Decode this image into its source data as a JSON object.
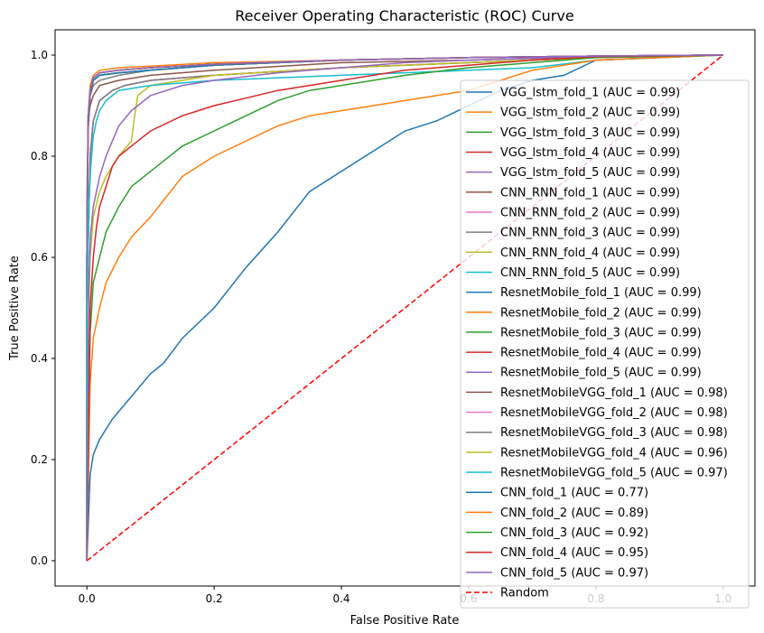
{
  "chart_data": {
    "type": "line",
    "title": "Receiver Operating Characteristic (ROC) Curve",
    "xlabel": "False Positive Rate",
    "ylabel": "True Positive Rate",
    "xlim": [
      -0.05,
      1.05
    ],
    "ylim": [
      -0.05,
      1.05
    ],
    "xticks": [
      "0.0",
      "0.2",
      "0.4",
      "0.6",
      "0.8",
      "1.0"
    ],
    "yticks": [
      "0.0",
      "0.2",
      "0.4",
      "0.6",
      "0.8",
      "1.0"
    ],
    "grid": false,
    "legend_position": "right",
    "series": [
      {
        "name": "VGG_lstm_fold_1 (AUC = 0.99)",
        "color": "#1f77b4",
        "x": [
          0,
          0,
          0.002,
          0.005,
          0.01,
          0.02,
          0.05,
          0.1,
          0.2,
          0.4,
          0.6,
          0.8,
          1
        ],
        "y": [
          0,
          0.6,
          0.85,
          0.92,
          0.95,
          0.96,
          0.965,
          0.97,
          0.98,
          0.99,
          0.995,
          0.998,
          1
        ]
      },
      {
        "name": "VGG_lstm_fold_2 (AUC = 0.99)",
        "color": "#ff7f0e",
        "x": [
          0,
          0,
          0.002,
          0.005,
          0.01,
          0.02,
          0.05,
          0.1,
          0.2,
          0.4,
          0.6,
          0.8,
          1
        ],
        "y": [
          0,
          0.65,
          0.88,
          0.94,
          0.96,
          0.97,
          0.975,
          0.978,
          0.985,
          0.99,
          0.995,
          0.998,
          1
        ]
      },
      {
        "name": "VGG_lstm_fold_3 (AUC = 0.99)",
        "color": "#2ca02c",
        "x": [
          0,
          0,
          0.002,
          0.005,
          0.01,
          0.02,
          0.05,
          0.1,
          0.2,
          0.4,
          0.6,
          0.8,
          1
        ],
        "y": [
          0,
          0.6,
          0.86,
          0.92,
          0.95,
          0.96,
          0.965,
          0.97,
          0.98,
          0.99,
          0.995,
          0.998,
          1
        ]
      },
      {
        "name": "VGG_lstm_fold_4 (AUC = 0.99)",
        "color": "#d62728",
        "x": [
          0,
          0,
          0.002,
          0.005,
          0.01,
          0.02,
          0.05,
          0.1,
          0.2,
          0.4,
          0.6,
          0.8,
          1
        ],
        "y": [
          0,
          0.6,
          0.86,
          0.92,
          0.95,
          0.96,
          0.965,
          0.97,
          0.98,
          0.99,
          0.995,
          0.998,
          1
        ]
      },
      {
        "name": "VGG_lstm_fold_5 (AUC = 0.99)",
        "color": "#9467bd",
        "x": [
          0,
          0,
          0.002,
          0.005,
          0.01,
          0.02,
          0.05,
          0.1,
          0.2,
          0.4,
          0.6,
          0.8,
          1
        ],
        "y": [
          0,
          0.6,
          0.87,
          0.93,
          0.955,
          0.965,
          0.97,
          0.975,
          0.982,
          0.99,
          0.995,
          0.998,
          1
        ]
      },
      {
        "name": "CNN_RNN_fold_1 (AUC = 0.99)",
        "color": "#8c564b",
        "x": [
          0,
          0,
          0.002,
          0.005,
          0.01,
          0.02,
          0.05,
          0.1,
          0.2,
          0.4,
          0.6,
          0.8,
          1
        ],
        "y": [
          0,
          0.7,
          0.87,
          0.9,
          0.92,
          0.94,
          0.95,
          0.96,
          0.97,
          0.985,
          0.99,
          0.997,
          1
        ]
      },
      {
        "name": "CNN_RNN_fold_2 (AUC = 0.99)",
        "color": "#e377c2",
        "x": [
          0,
          0,
          0.002,
          0.005,
          0.01,
          0.02,
          0.05,
          0.1,
          0.2,
          0.4,
          0.6,
          0.8,
          1
        ],
        "y": [
          0,
          0.6,
          0.88,
          0.93,
          0.95,
          0.96,
          0.965,
          0.97,
          0.98,
          0.99,
          0.995,
          0.998,
          1
        ]
      },
      {
        "name": "CNN_RNN_fold_3 (AUC = 0.99)",
        "color": "#7f7f7f",
        "x": [
          0,
          0,
          0.002,
          0.005,
          0.01,
          0.02,
          0.05,
          0.1,
          0.2,
          0.4,
          0.6,
          0.8,
          1
        ],
        "y": [
          0,
          0.6,
          0.88,
          0.92,
          0.94,
          0.95,
          0.96,
          0.97,
          0.98,
          0.99,
          0.995,
          0.998,
          1
        ]
      },
      {
        "name": "CNN_RNN_fold_4 (AUC = 0.99)",
        "color": "#bcbd22",
        "x": [
          0,
          0,
          0.002,
          0.005,
          0.01,
          0.02,
          0.05,
          0.1,
          0.2,
          0.4,
          0.6,
          0.8,
          1
        ],
        "y": [
          0,
          0.6,
          0.88,
          0.93,
          0.95,
          0.96,
          0.965,
          0.97,
          0.98,
          0.99,
          0.995,
          0.998,
          1
        ]
      },
      {
        "name": "CNN_RNN_fold_5 (AUC = 0.99)",
        "color": "#17becf",
        "x": [
          0,
          0,
          0.002,
          0.005,
          0.01,
          0.02,
          0.05,
          0.1,
          0.2,
          0.4,
          0.6,
          0.8,
          1
        ],
        "y": [
          0,
          0.6,
          0.88,
          0.93,
          0.95,
          0.96,
          0.965,
          0.97,
          0.98,
          0.99,
          0.995,
          0.998,
          1
        ]
      },
      {
        "name": "ResnetMobile_fold_1 (AUC = 0.99)",
        "color": "#1f77b4",
        "x": [
          0,
          0,
          0.002,
          0.005,
          0.01,
          0.02,
          0.05,
          0.1,
          0.2,
          0.4,
          0.6,
          0.8,
          1
        ],
        "y": [
          0,
          0.6,
          0.86,
          0.92,
          0.95,
          0.96,
          0.965,
          0.97,
          0.98,
          0.99,
          0.995,
          0.998,
          1
        ]
      },
      {
        "name": "ResnetMobile_fold_2 (AUC = 0.99)",
        "color": "#ff7f0e",
        "x": [
          0,
          0,
          0.002,
          0.005,
          0.01,
          0.02,
          0.05,
          0.1,
          0.2,
          0.4,
          0.6,
          0.8,
          1
        ],
        "y": [
          0,
          0.6,
          0.87,
          0.93,
          0.955,
          0.965,
          0.97,
          0.975,
          0.982,
          0.99,
          0.995,
          0.998,
          1
        ]
      },
      {
        "name": "ResnetMobile_fold_3 (AUC = 0.99)",
        "color": "#2ca02c",
        "x": [
          0,
          0,
          0.002,
          0.005,
          0.01,
          0.02,
          0.05,
          0.1,
          0.2,
          0.4,
          0.6,
          0.8,
          1
        ],
        "y": [
          0,
          0.6,
          0.87,
          0.93,
          0.955,
          0.965,
          0.97,
          0.975,
          0.982,
          0.99,
          0.995,
          0.998,
          1
        ]
      },
      {
        "name": "ResnetMobile_fold_4 (AUC = 0.99)",
        "color": "#d62728",
        "x": [
          0,
          0,
          0.002,
          0.005,
          0.01,
          0.02,
          0.05,
          0.1,
          0.2,
          0.4,
          0.6,
          0.8,
          1
        ],
        "y": [
          0,
          0.6,
          0.87,
          0.93,
          0.955,
          0.965,
          0.97,
          0.975,
          0.982,
          0.99,
          0.995,
          0.998,
          1
        ]
      },
      {
        "name": "ResnetMobile_fold_5 (AUC = 0.99)",
        "color": "#9467bd",
        "x": [
          0,
          0,
          0.002,
          0.005,
          0.01,
          0.02,
          0.05,
          0.1,
          0.2,
          0.4,
          0.6,
          0.8,
          1
        ],
        "y": [
          0,
          0.6,
          0.87,
          0.93,
          0.955,
          0.965,
          0.97,
          0.975,
          0.982,
          0.99,
          0.995,
          0.998,
          1
        ]
      },
      {
        "name": "ResnetMobileVGG_fold_1 (AUC = 0.98)",
        "color": "#8c564b",
        "x": [
          0,
          0,
          0.005,
          0.01,
          0.02,
          0.04,
          0.06,
          0.1,
          0.2,
          0.4,
          0.6,
          0.8,
          1
        ],
        "y": [
          0,
          0.5,
          0.8,
          0.87,
          0.91,
          0.93,
          0.94,
          0.95,
          0.96,
          0.975,
          0.985,
          0.995,
          1
        ]
      },
      {
        "name": "ResnetMobileVGG_fold_2 (AUC = 0.98)",
        "color": "#e377c2",
        "x": [
          0,
          0,
          0.005,
          0.01,
          0.02,
          0.04,
          0.06,
          0.1,
          0.2,
          0.4,
          0.6,
          0.8,
          1
        ],
        "y": [
          0,
          0.5,
          0.8,
          0.87,
          0.91,
          0.93,
          0.94,
          0.95,
          0.96,
          0.975,
          0.985,
          0.995,
          1
        ]
      },
      {
        "name": "ResnetMobileVGG_fold_3 (AUC = 0.98)",
        "color": "#7f7f7f",
        "x": [
          0,
          0,
          0.005,
          0.01,
          0.02,
          0.04,
          0.06,
          0.1,
          0.2,
          0.4,
          0.6,
          0.8,
          1
        ],
        "y": [
          0,
          0.5,
          0.8,
          0.87,
          0.91,
          0.93,
          0.94,
          0.95,
          0.96,
          0.975,
          0.985,
          0.995,
          1
        ]
      },
      {
        "name": "ResnetMobileVGG_fold_4 (AUC = 0.96)",
        "color": "#bcbd22",
        "x": [
          0,
          0,
          0.005,
          0.01,
          0.02,
          0.03,
          0.05,
          0.07,
          0.075,
          0.08,
          0.1,
          0.2,
          0.4,
          0.6,
          0.8,
          1
        ],
        "y": [
          0,
          0.35,
          0.6,
          0.68,
          0.73,
          0.76,
          0.8,
          0.83,
          0.88,
          0.92,
          0.94,
          0.96,
          0.975,
          0.985,
          0.995,
          1
        ]
      },
      {
        "name": "ResnetMobileVGG_fold_5 (AUC = 0.97)",
        "color": "#17becf",
        "x": [
          0,
          0,
          0.003,
          0.006,
          0.01,
          0.015,
          0.02,
          0.03,
          0.05,
          0.1,
          0.2,
          0.4,
          0.6,
          0.7,
          0.8,
          1
        ],
        "y": [
          0,
          0.5,
          0.7,
          0.78,
          0.84,
          0.87,
          0.89,
          0.91,
          0.93,
          0.94,
          0.95,
          0.96,
          0.97,
          0.975,
          0.99,
          1
        ]
      },
      {
        "name": "CNN_fold_1 (AUC = 0.77)",
        "color": "#1f77b4",
        "x": [
          0,
          0.005,
          0.01,
          0.02,
          0.04,
          0.06,
          0.08,
          0.1,
          0.12,
          0.15,
          0.2,
          0.25,
          0.3,
          0.35,
          0.4,
          0.45,
          0.5,
          0.55,
          0.6,
          0.65,
          0.7,
          0.75,
          0.8,
          1
        ],
        "y": [
          0,
          0.17,
          0.21,
          0.24,
          0.28,
          0.31,
          0.34,
          0.37,
          0.39,
          0.44,
          0.5,
          0.58,
          0.65,
          0.73,
          0.77,
          0.81,
          0.85,
          0.87,
          0.9,
          0.93,
          0.95,
          0.96,
          0.99,
          1
        ]
      },
      {
        "name": "CNN_fold_2 (AUC = 0.89)",
        "color": "#ff7f0e",
        "x": [
          0,
          0.005,
          0.01,
          0.02,
          0.03,
          0.05,
          0.07,
          0.1,
          0.15,
          0.2,
          0.25,
          0.3,
          0.35,
          0.4,
          0.45,
          0.5,
          0.55,
          0.6,
          0.65,
          0.7,
          0.8,
          1
        ],
        "y": [
          0,
          0.35,
          0.44,
          0.5,
          0.55,
          0.6,
          0.64,
          0.68,
          0.76,
          0.8,
          0.83,
          0.86,
          0.88,
          0.89,
          0.9,
          0.91,
          0.92,
          0.93,
          0.95,
          0.97,
          0.99,
          1
        ]
      },
      {
        "name": "CNN_fold_3 (AUC = 0.92)",
        "color": "#2ca02c",
        "x": [
          0,
          0.005,
          0.01,
          0.02,
          0.03,
          0.05,
          0.07,
          0.1,
          0.12,
          0.15,
          0.2,
          0.25,
          0.3,
          0.35,
          0.4,
          0.5,
          0.6,
          0.7,
          0.8,
          1
        ],
        "y": [
          0,
          0.45,
          0.55,
          0.6,
          0.65,
          0.7,
          0.74,
          0.77,
          0.79,
          0.82,
          0.85,
          0.88,
          0.91,
          0.93,
          0.94,
          0.96,
          0.975,
          0.985,
          0.995,
          1
        ]
      },
      {
        "name": "CNN_fold_4 (AUC = 0.95)",
        "color": "#d62728",
        "x": [
          0,
          0.005,
          0.01,
          0.015,
          0.02,
          0.03,
          0.04,
          0.05,
          0.07,
          0.1,
          0.15,
          0.2,
          0.3,
          0.4,
          0.5,
          0.6,
          0.7,
          0.8,
          1
        ],
        "y": [
          0,
          0.5,
          0.6,
          0.66,
          0.7,
          0.74,
          0.78,
          0.8,
          0.82,
          0.85,
          0.88,
          0.9,
          0.93,
          0.95,
          0.97,
          0.98,
          0.99,
          0.997,
          1
        ]
      },
      {
        "name": "CNN_fold_5 (AUC = 0.97)",
        "color": "#9467bd",
        "x": [
          0,
          0.003,
          0.006,
          0.01,
          0.015,
          0.02,
          0.03,
          0.04,
          0.05,
          0.07,
          0.1,
          0.15,
          0.2,
          0.3,
          0.4,
          0.5,
          0.6,
          0.8,
          1
        ],
        "y": [
          0,
          0.55,
          0.65,
          0.7,
          0.73,
          0.76,
          0.8,
          0.83,
          0.86,
          0.89,
          0.92,
          0.94,
          0.95,
          0.965,
          0.975,
          0.985,
          0.99,
          0.998,
          1
        ]
      },
      {
        "name": "Random",
        "color": "#ff0000",
        "dashed": true,
        "x": [
          0,
          1
        ],
        "y": [
          0,
          1
        ]
      }
    ]
  }
}
